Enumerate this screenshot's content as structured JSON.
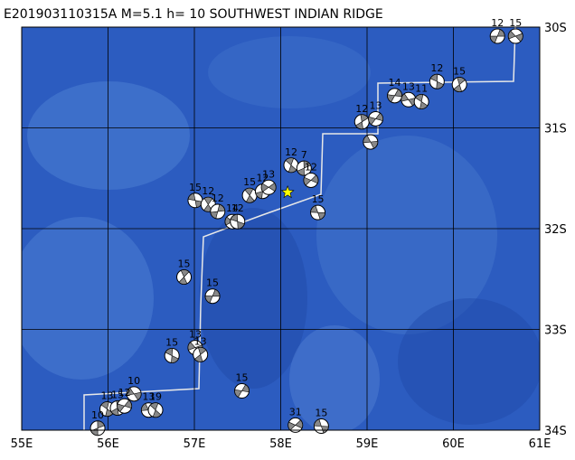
{
  "header": {
    "title": "E201903110315A M=5.1 h= 10 SOUTHWEST INDIAN RIDGE"
  },
  "map": {
    "xlim": [
      55,
      61
    ],
    "ylim": [
      30,
      34
    ],
    "xticks": [
      {
        "value": 55,
        "label": "55E"
      },
      {
        "value": 56,
        "label": "56E"
      },
      {
        "value": 57,
        "label": "57E"
      },
      {
        "value": 58,
        "label": "58E"
      },
      {
        "value": 59,
        "label": "59E"
      },
      {
        "value": 60,
        "label": "60E"
      },
      {
        "value": 61,
        "label": "61E"
      }
    ],
    "yticks": [
      {
        "value": 30,
        "label": "30S"
      },
      {
        "value": 31,
        "label": "31S"
      },
      {
        "value": 32,
        "label": "32S"
      },
      {
        "value": 33,
        "label": "33S"
      },
      {
        "value": 34,
        "label": "34S"
      }
    ],
    "main_event": {
      "lon": 58.08,
      "lat": 31.64
    },
    "events": [
      {
        "lon": 60.51,
        "lat": 30.09,
        "depth": 12
      },
      {
        "lon": 60.72,
        "lat": 30.09,
        "depth": 15
      },
      {
        "lon": 59.81,
        "lat": 30.54,
        "depth": 12
      },
      {
        "lon": 60.07,
        "lat": 30.57,
        "depth": 15
      },
      {
        "lon": 59.32,
        "lat": 30.68,
        "depth": 14
      },
      {
        "lon": 59.48,
        "lat": 30.72,
        "depth": 13
      },
      {
        "lon": 59.63,
        "lat": 30.74,
        "depth": 11
      },
      {
        "lon": 58.94,
        "lat": 30.94,
        "depth": 12
      },
      {
        "lon": 59.1,
        "lat": 30.91,
        "depth": 13
      },
      {
        "lon": 59.04,
        "lat": 31.14,
        "depth": null
      },
      {
        "lon": 58.12,
        "lat": 31.37,
        "depth": 12
      },
      {
        "lon": 58.27,
        "lat": 31.4,
        "depth": 7
      },
      {
        "lon": 58.35,
        "lat": 31.52,
        "depth": 12
      },
      {
        "lon": 58.43,
        "lat": 31.84,
        "depth": 15
      },
      {
        "lon": 57.64,
        "lat": 31.67,
        "depth": 15
      },
      {
        "lon": 57.79,
        "lat": 31.63,
        "depth": 12
      },
      {
        "lon": 57.86,
        "lat": 31.59,
        "depth": 13
      },
      {
        "lon": 57.01,
        "lat": 31.72,
        "depth": 15
      },
      {
        "lon": 57.16,
        "lat": 31.76,
        "depth": 12
      },
      {
        "lon": 57.27,
        "lat": 31.83,
        "depth": 12
      },
      {
        "lon": 57.44,
        "lat": 31.93,
        "depth": 14
      },
      {
        "lon": 57.5,
        "lat": 31.93,
        "depth": 12
      },
      {
        "lon": 56.88,
        "lat": 32.48,
        "depth": 15
      },
      {
        "lon": 57.21,
        "lat": 32.67,
        "depth": 15
      },
      {
        "lon": 57.01,
        "lat": 33.18,
        "depth": 13
      },
      {
        "lon": 56.74,
        "lat": 33.26,
        "depth": 15
      },
      {
        "lon": 57.07,
        "lat": 33.25,
        "depth": 13
      },
      {
        "lon": 57.55,
        "lat": 33.61,
        "depth": 15
      },
      {
        "lon": 56.3,
        "lat": 33.64,
        "depth": 10
      },
      {
        "lon": 55.99,
        "lat": 33.79,
        "depth": 13
      },
      {
        "lon": 56.11,
        "lat": 33.78,
        "depth": 15
      },
      {
        "lon": 56.19,
        "lat": 33.76,
        "depth": 12
      },
      {
        "lon": 56.47,
        "lat": 33.8,
        "depth": 13
      },
      {
        "lon": 56.55,
        "lat": 33.8,
        "depth": 19
      },
      {
        "lon": 55.88,
        "lat": 33.98,
        "depth": 10
      },
      {
        "lon": 58.17,
        "lat": 33.95,
        "depth": 31
      },
      {
        "lon": 58.47,
        "lat": 33.96,
        "depth": 15
      }
    ]
  }
}
